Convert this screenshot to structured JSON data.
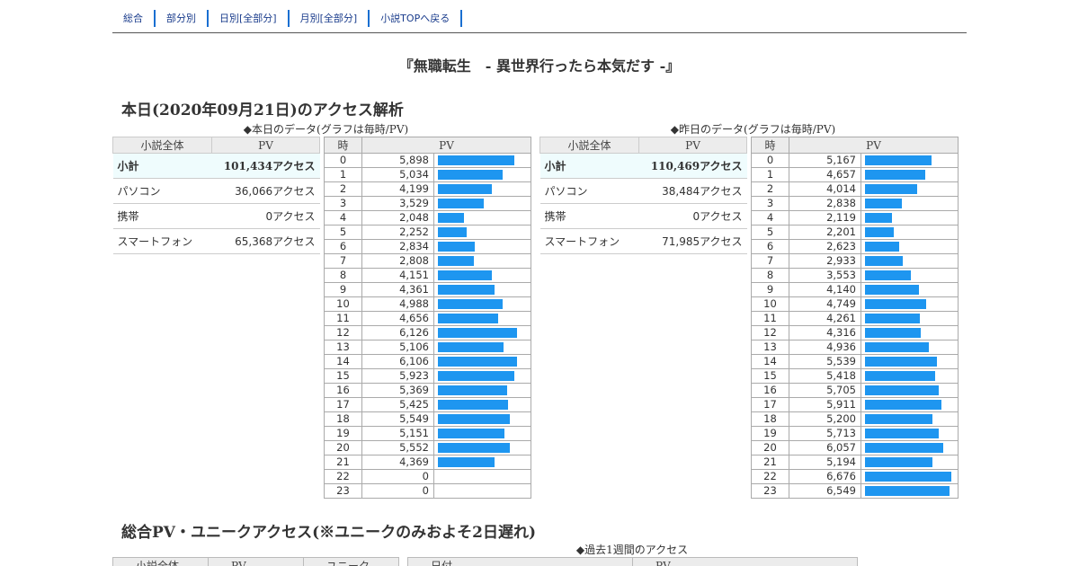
{
  "nav": {
    "items": [
      "総合",
      "部分別",
      "日別[全部分]",
      "月別[全部分]",
      "小説TOPへ戻る"
    ]
  },
  "title": "『無職転生　- 異世界行ったら本気だす -』",
  "today_section": {
    "heading": "本日(2020年09月21日)のアクセス解析",
    "caption": "◆本日のデータ(グラフは毎時/PV)"
  },
  "yesterday_caption": "◆昨日のデータ(グラフは毎時/PV)",
  "summary_headers": [
    "小説全体",
    "PV"
  ],
  "hourly_headers": [
    "時",
    "PV"
  ],
  "today_summary": [
    {
      "label": "小計",
      "value": "101,434アクセス"
    },
    {
      "label": "パソコン",
      "value": "36,066アクセス"
    },
    {
      "label": "携帯",
      "value": "0アクセス"
    },
    {
      "label": "スマートフォン",
      "value": "65,368アクセス"
    }
  ],
  "yesterday_summary": [
    {
      "label": "小計",
      "value": "110,469アクセス"
    },
    {
      "label": "パソコン",
      "value": "38,484アクセス"
    },
    {
      "label": "携帯",
      "value": "0アクセス"
    },
    {
      "label": "スマートフォン",
      "value": "71,985アクセス"
    }
  ],
  "today_hourly": {
    "hours": [
      "0",
      "1",
      "2",
      "3",
      "4",
      "5",
      "6",
      "7",
      "8",
      "9",
      "10",
      "11",
      "12",
      "13",
      "14",
      "15",
      "16",
      "17",
      "18",
      "19",
      "20",
      "21",
      "22",
      "23"
    ],
    "pv_text": [
      "5,898",
      "5,034",
      "4,199",
      "3,529",
      "2,048",
      "2,252",
      "2,834",
      "2,808",
      "4,151",
      "4,361",
      "4,988",
      "4,656",
      "6,126",
      "5,106",
      "6,106",
      "5,923",
      "5,369",
      "5,425",
      "5,549",
      "5,151",
      "5,552",
      "4,369",
      "0",
      "0"
    ],
    "pv": [
      5898,
      5034,
      4199,
      3529,
      2048,
      2252,
      2834,
      2808,
      4151,
      4361,
      4988,
      4656,
      6126,
      5106,
      6106,
      5923,
      5369,
      5425,
      5549,
      5151,
      5552,
      4369,
      0,
      0
    ]
  },
  "yesterday_hourly": {
    "hours": [
      "0",
      "1",
      "2",
      "3",
      "4",
      "5",
      "6",
      "7",
      "8",
      "9",
      "10",
      "11",
      "12",
      "13",
      "14",
      "15",
      "16",
      "17",
      "18",
      "19",
      "20",
      "21",
      "22",
      "23"
    ],
    "pv_text": [
      "5,167",
      "4,657",
      "4,014",
      "2,838",
      "2,119",
      "2,201",
      "2,623",
      "2,933",
      "3,553",
      "4,140",
      "4,749",
      "4,261",
      "4,316",
      "4,936",
      "5,539",
      "5,418",
      "5,705",
      "5,911",
      "5,200",
      "5,713",
      "6,057",
      "5,194",
      "6,676",
      "6,549"
    ],
    "pv": [
      5167,
      4657,
      4014,
      2838,
      2119,
      2201,
      2623,
      2933,
      3553,
      4140,
      4749,
      4261,
      4316,
      4936,
      5539,
      5418,
      5705,
      5911,
      5200,
      5713,
      6057,
      5194,
      6676,
      6549
    ]
  },
  "bar_color": "#1e96f0",
  "bar_scale_max": 6676,
  "total_section": {
    "heading": "総合PV・ユニークアクセス(※ユニークのみおよそ2日遅れ)",
    "week_caption": "◆過去1週間のアクセス",
    "left_headers": [
      "小説全体",
      "PV",
      "ユニーク"
    ],
    "right_headers": [
      "日付",
      "PV"
    ]
  }
}
